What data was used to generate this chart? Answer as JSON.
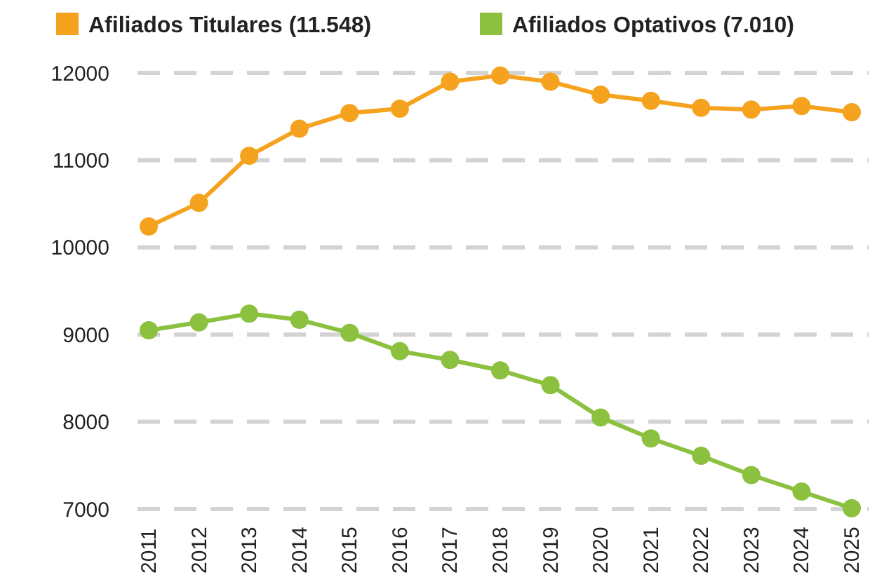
{
  "chart_data": {
    "type": "line",
    "categories": [
      "2011",
      "2012",
      "2013",
      "2014",
      "2015",
      "2016",
      "2017",
      "2018",
      "2019",
      "2020",
      "2021",
      "2022",
      "2023",
      "2024",
      "2025"
    ],
    "series": [
      {
        "name": "Afiliados Titulares (11.548)",
        "color": "#f5a31f",
        "values": [
          10240,
          10510,
          11050,
          11360,
          11540,
          11590,
          11900,
          11970,
          11900,
          11750,
          11680,
          11600,
          11580,
          11620,
          11550
        ]
      },
      {
        "name": "Afiliados Optativos (7.010)",
        "color": "#8bc13f",
        "values": [
          9050,
          9140,
          9240,
          9170,
          9020,
          8810,
          8710,
          8590,
          8420,
          8050,
          7810,
          7610,
          7390,
          7200,
          7010
        ]
      }
    ],
    "ylim": [
      7000,
      12000
    ],
    "yticks": [
      7000,
      8000,
      9000,
      10000,
      11000,
      12000
    ],
    "grid": "y",
    "legend": "top",
    "marker": "circle",
    "line_style": "solid"
  }
}
